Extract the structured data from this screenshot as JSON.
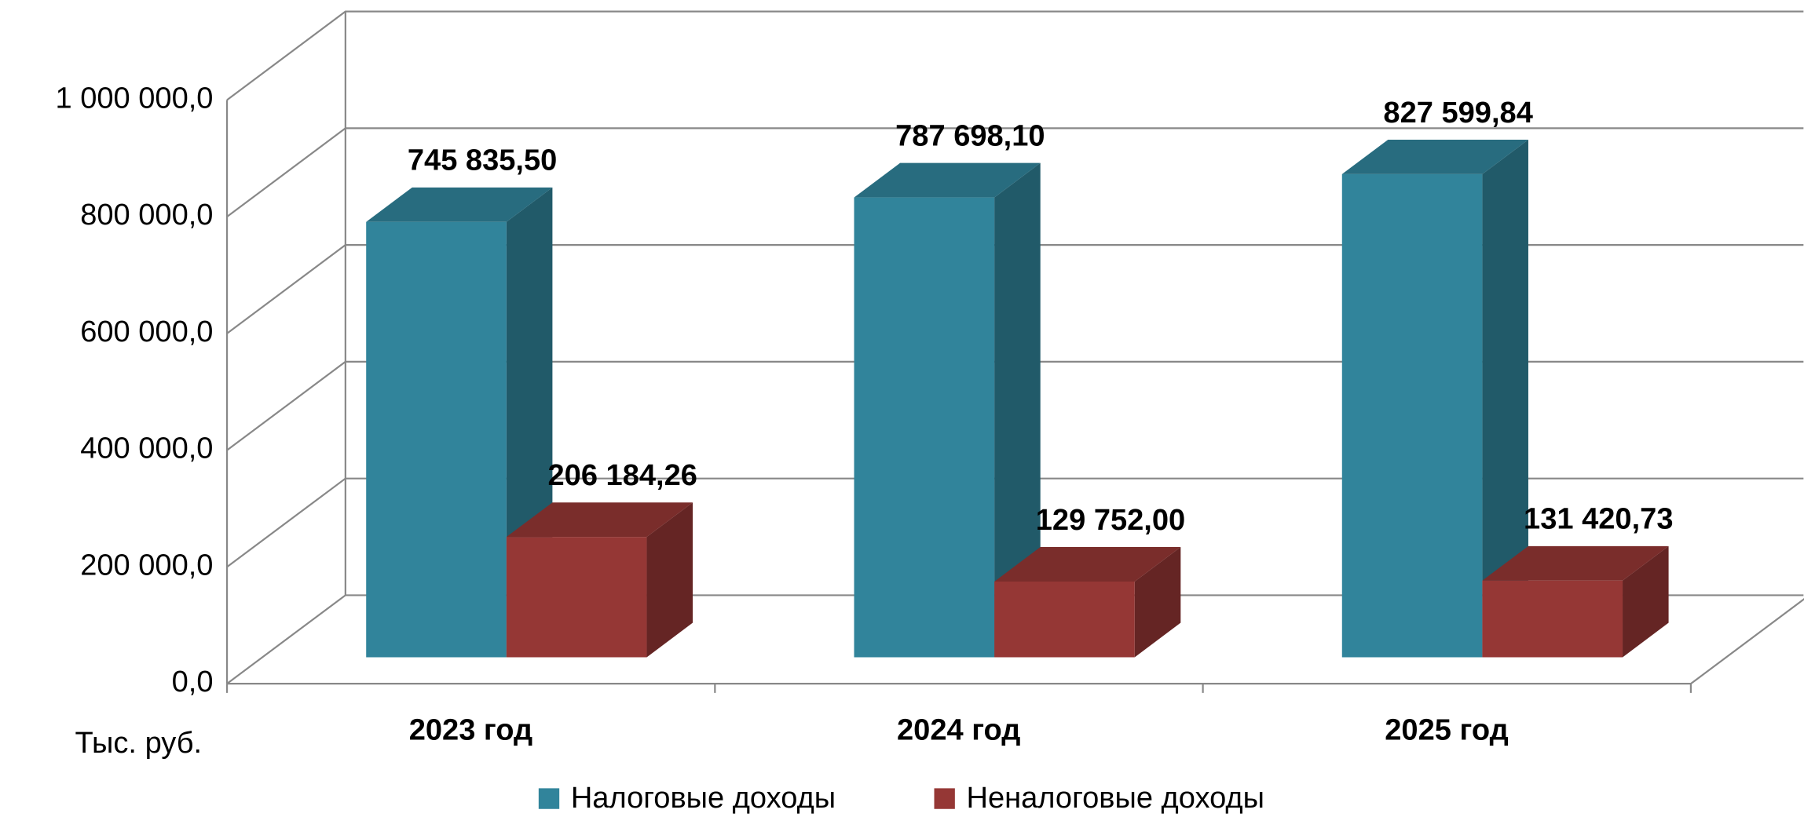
{
  "chart_data": {
    "type": "bar3d",
    "y_label": "Тыс. руб.",
    "categories": [
      "2023 год",
      "2024 год",
      "2025 год"
    ],
    "series": [
      {
        "name": "Налоговые доходы",
        "color": "#31849b",
        "values": [
          745835.5,
          787698.1,
          827599.84
        ],
        "value_labels": [
          "745 835,50",
          "787 698,10",
          "827 599,84"
        ]
      },
      {
        "name": "Неналоговые доходы",
        "color": "#953735",
        "values": [
          206184.26,
          129752.0,
          131420.73
        ],
        "value_labels": [
          "206 184,26",
          "129 752,00",
          "131 420,73"
        ]
      }
    ],
    "ylim": [
      0,
      1000000
    ],
    "yticks": [
      {
        "value": 0,
        "label": "0,0"
      },
      {
        "value": 200000,
        "label": "200 000,0"
      },
      {
        "value": 400000,
        "label": "400 000,0"
      },
      {
        "value": 600000,
        "label": "600 000,0"
      },
      {
        "value": 800000,
        "label": "800 000,0"
      },
      {
        "value": 1000000,
        "label": "1 000 000,0"
      }
    ],
    "grid": true,
    "legend": "bottom"
  }
}
